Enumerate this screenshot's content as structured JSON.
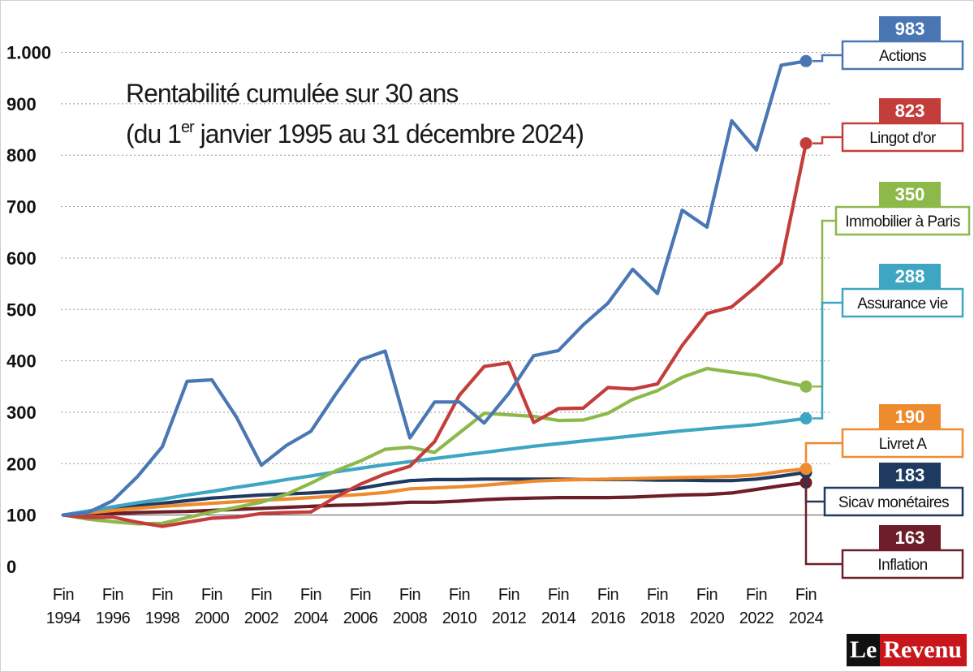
{
  "chart_data": {
    "type": "line",
    "title_line1": "Rentabilité cumulée sur 30 ans",
    "title_line2_pre": "(du 1",
    "title_line2_sup": "er",
    "title_line2_post": " janvier 1995 au 31 décembre 2024)",
    "ylim": [
      0,
      1000
    ],
    "yticks": [
      {
        "value": 0,
        "label": "0"
      },
      {
        "value": 100,
        "label": "100"
      },
      {
        "value": 200,
        "label": "200"
      },
      {
        "value": 300,
        "label": "300"
      },
      {
        "value": 400,
        "label": "400"
      },
      {
        "value": 500,
        "label": "500"
      },
      {
        "value": 600,
        "label": "600"
      },
      {
        "value": 700,
        "label": "700"
      },
      {
        "value": 800,
        "label": "800"
      },
      {
        "value": 900,
        "label": "900"
      },
      {
        "value": 1000,
        "label": "1.000"
      }
    ],
    "xticks": [
      {
        "value": 1994,
        "top": "Fin",
        "bottom": "1994"
      },
      {
        "value": 1996,
        "top": "Fin",
        "bottom": "1996"
      },
      {
        "value": 1998,
        "top": "Fin",
        "bottom": "1998"
      },
      {
        "value": 2000,
        "top": "Fin",
        "bottom": "2000"
      },
      {
        "value": 2002,
        "top": "Fin",
        "bottom": "2002"
      },
      {
        "value": 2004,
        "top": "Fin",
        "bottom": "2004"
      },
      {
        "value": 2006,
        "top": "Fin",
        "bottom": "2006"
      },
      {
        "value": 2008,
        "top": "Fin",
        "bottom": "2008"
      },
      {
        "value": 2010,
        "top": "Fin",
        "bottom": "2010"
      },
      {
        "value": 2012,
        "top": "Fin",
        "bottom": "2012"
      },
      {
        "value": 2014,
        "top": "Fin",
        "bottom": "2014"
      },
      {
        "value": 2016,
        "top": "Fin",
        "bottom": "2016"
      },
      {
        "value": 2018,
        "top": "Fin",
        "bottom": "2018"
      },
      {
        "value": 2020,
        "top": "Fin",
        "bottom": "2020"
      },
      {
        "value": 2022,
        "top": "Fin",
        "bottom": "2022"
      },
      {
        "value": 2024,
        "top": "Fin",
        "bottom": "2024"
      }
    ],
    "x": [
      1994,
      1995,
      1996,
      1997,
      1998,
      1999,
      2000,
      2001,
      2002,
      2003,
      2004,
      2005,
      2006,
      2007,
      2008,
      2009,
      2010,
      2011,
      2012,
      2013,
      2014,
      2015,
      2016,
      2017,
      2018,
      2019,
      2020,
      2021,
      2022,
      2023,
      2024
    ],
    "grid": "dotted horizontal",
    "baseline": 100,
    "series": [
      {
        "name": "Actions",
        "final_label": "983",
        "color": "#4a77b4",
        "values": [
          100,
          105,
          128,
          175,
          233,
          360,
          363,
          290,
          197,
          235,
          263,
          335,
          402,
          419,
          250,
          320,
          320,
          279,
          337,
          410,
          420,
          470,
          512,
          578,
          531,
          693,
          660,
          867,
          810,
          975,
          983
        ]
      },
      {
        "name": "Lingot d'or",
        "final_label": "823",
        "color": "#c33e3b",
        "values": [
          100,
          95,
          96,
          86,
          78,
          86,
          94,
          96,
          103,
          105,
          106,
          135,
          160,
          180,
          195,
          243,
          333,
          389,
          396,
          280,
          307,
          308,
          348,
          345,
          355,
          430,
          492,
          505,
          545,
          590,
          823
        ]
      },
      {
        "name": "Immobilier à Paris",
        "final_label": "350",
        "color": "#8db84a",
        "values": [
          100,
          92,
          87,
          83,
          84,
          95,
          106,
          115,
          125,
          140,
          162,
          186,
          205,
          228,
          232,
          222,
          260,
          298,
          295,
          292,
          284,
          285,
          298,
          325,
          342,
          368,
          385,
          378,
          372,
          360,
          350
        ]
      },
      {
        "name": "Assurance vie",
        "final_label": "288",
        "color": "#3ea6c2",
        "values": [
          100,
          108,
          116,
          124,
          131,
          139,
          146,
          154,
          161,
          169,
          176,
          184,
          191,
          198,
          204,
          210,
          216,
          222,
          228,
          234,
          239,
          244,
          249,
          254,
          259,
          264,
          268,
          272,
          276,
          282,
          288
        ]
      },
      {
        "name": "Livret A",
        "final_label": "190",
        "color": "#ef8b2f",
        "values": [
          100,
          104,
          109,
          113,
          117,
          120,
          123,
          126,
          129,
          131,
          134,
          137,
          140,
          144,
          151,
          153,
          155,
          158,
          162,
          166,
          168,
          169,
          170,
          171,
          172,
          173,
          174,
          175,
          178,
          185,
          190
        ]
      },
      {
        "name": "Sicav monétaires",
        "final_label": "183",
        "color": "#1e3a60",
        "values": [
          100,
          106,
          112,
          118,
          123,
          128,
          133,
          136,
          139,
          141,
          143,
          146,
          152,
          160,
          167,
          169,
          169,
          170,
          170,
          170,
          170,
          169,
          169,
          169,
          168,
          168,
          167,
          167,
          170,
          176,
          183
        ]
      },
      {
        "name": "Inflation",
        "final_label": "163",
        "color": "#6e1e28",
        "values": [
          100,
          102,
          103,
          105,
          106,
          107,
          109,
          111,
          113,
          115,
          117,
          119,
          120,
          122,
          125,
          125,
          127,
          130,
          132,
          133,
          134,
          134,
          134,
          135,
          137,
          139,
          140,
          143,
          150,
          157,
          163
        ]
      }
    ]
  },
  "logo": {
    "part1": "Le",
    "part2": "Revenu"
  }
}
